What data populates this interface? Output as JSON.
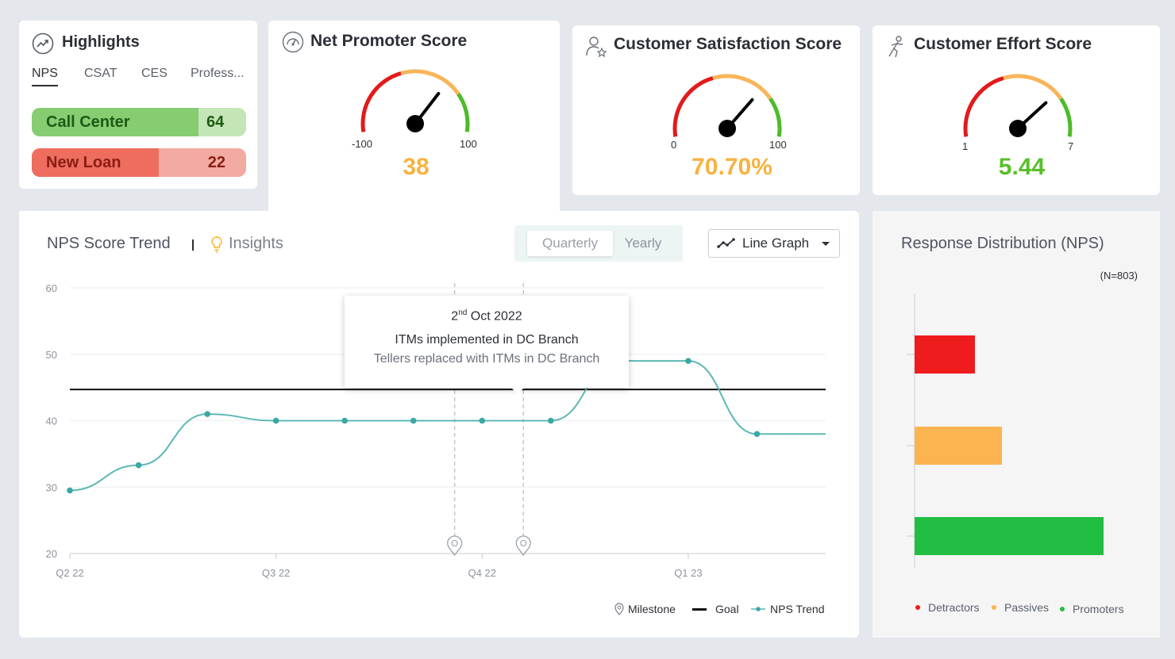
{
  "highlights": {
    "title": "Highlights",
    "tabs": [
      "NPS",
      "CSAT",
      "CES",
      "Profess..."
    ],
    "rows": [
      {
        "name": "Call Center",
        "value": "64"
      },
      {
        "name": "New Loan",
        "value": "22"
      }
    ]
  },
  "nps": {
    "title": "Net Promoter Score",
    "min": "-100",
    "max": "100",
    "value": "38",
    "value_color": "#f7b240",
    "fraction": 0.69
  },
  "csat": {
    "title": "Customer Satisfaction Score",
    "min": "0",
    "max": "100",
    "value": "70.70%",
    "value_color": "#f7b240",
    "fraction": 0.707
  },
  "ces": {
    "title": "Customer Effort Score",
    "min": "1",
    "max": "7",
    "value": "5.44",
    "value_color": "#59bf2a",
    "fraction": 0.74
  },
  "trend": {
    "title": "NPS Score Trend",
    "insights": "Insights",
    "toggle": {
      "active": "Quarterly",
      "inactive": "Yearly"
    },
    "dropdown": "Line Graph",
    "tooltip": {
      "day": "2",
      "suffix": "nd",
      "month_year": "Oct 2022",
      "line1": "ITMs implemented in DC Branch",
      "line2": "Tellers replaced with ITMs in DC Branch"
    },
    "legend": {
      "milestone": "Milestone",
      "goal": "Goal",
      "trend": "NPS Trend"
    }
  },
  "distribution": {
    "title": "Response Distribution (NPS)",
    "n": "(N=803)",
    "legend": [
      "Detractors",
      "Passives",
      "Promoters"
    ]
  },
  "chart_data": [
    {
      "type": "line",
      "title": "NPS Score Trend",
      "y_ticks": [
        "60",
        "50",
        "40",
        "30",
        "20"
      ],
      "ylim": [
        20,
        60
      ],
      "x_ticks": [
        "Q2 22",
        "Q3 22",
        "Q4 22",
        "Q1 23"
      ],
      "xlim": [
        0,
        11
      ],
      "x_tick_positions": [
        0,
        3,
        6,
        9
      ],
      "grid": true,
      "legend_position": "bottom-right",
      "series": [
        {
          "name": "NPS Trend",
          "color": "#5bb8b4",
          "x": [
            0,
            1,
            2,
            3,
            4,
            5,
            6,
            7,
            8,
            9,
            10,
            11
          ],
          "y": [
            29.5,
            33.3,
            41,
            40,
            40,
            40,
            40,
            40,
            49,
            49,
            38,
            38
          ],
          "markers": [
            0,
            1,
            2,
            3,
            4,
            5,
            6,
            7,
            9,
            10
          ]
        },
        {
          "name": "Goal",
          "color": "#111111",
          "y_constant": 44.7
        }
      ],
      "milestones_x": [
        5.6,
        6.6
      ]
    },
    {
      "type": "bar",
      "orientation": "horizontal",
      "title": "Response Distribution (NPS)",
      "categories": [
        "Detractors",
        "Passives",
        "Promoters"
      ],
      "values": [
        76,
        110,
        238
      ],
      "colors": [
        "#ee1c1c",
        "#fbb450",
        "#22bd43"
      ]
    }
  ]
}
